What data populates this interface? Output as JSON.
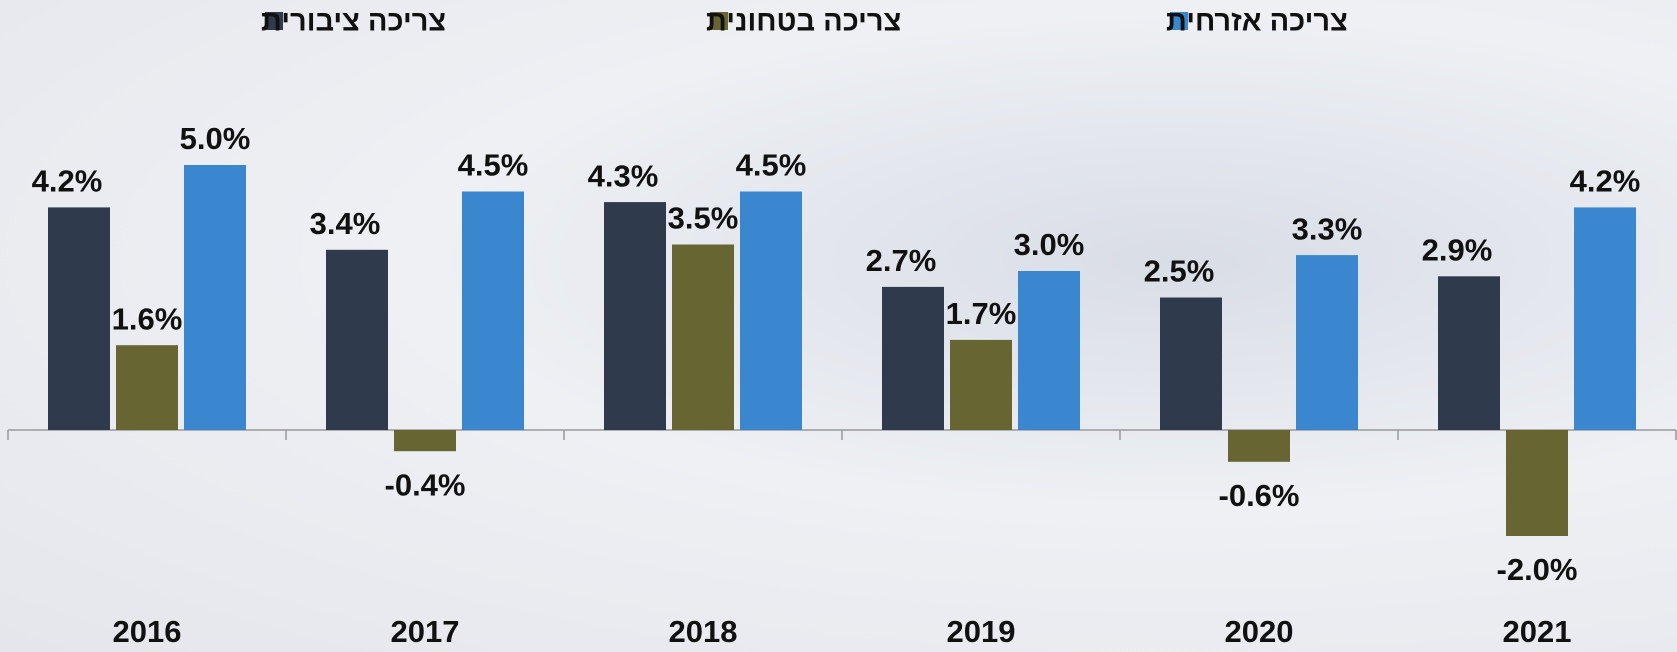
{
  "chart_data": {
    "type": "bar",
    "categories": [
      "2016",
      "2017",
      "2018",
      "2019",
      "2020",
      "2021"
    ],
    "series": [
      {
        "name": "צריכה ציבורית",
        "color": "#2f3a4c",
        "values": [
          4.2,
          3.4,
          4.3,
          2.7,
          2.5,
          2.9
        ],
        "value_labels": [
          "4.2%",
          "3.4%",
          "4.3%",
          "2.7%",
          "2.5%",
          "2.9%"
        ]
      },
      {
        "name": "צריכה בטחונית",
        "color": "#676532",
        "values": [
          1.6,
          -0.4,
          3.5,
          1.7,
          -0.6,
          -2.0
        ],
        "value_labels": [
          "1.6%",
          "-0.4%",
          "3.5%",
          "1.7%",
          "-0.6%",
          "-2.0%"
        ]
      },
      {
        "name": "צריכה אזרחית",
        "color": "#3a87cf",
        "values": [
          5.0,
          4.5,
          4.5,
          3.0,
          3.3,
          4.2
        ],
        "value_labels": [
          "5.0%",
          "4.5%",
          "4.5%",
          "3.0%",
          "3.3%",
          "4.2%"
        ]
      }
    ],
    "ylim": [
      -3,
      6
    ]
  }
}
